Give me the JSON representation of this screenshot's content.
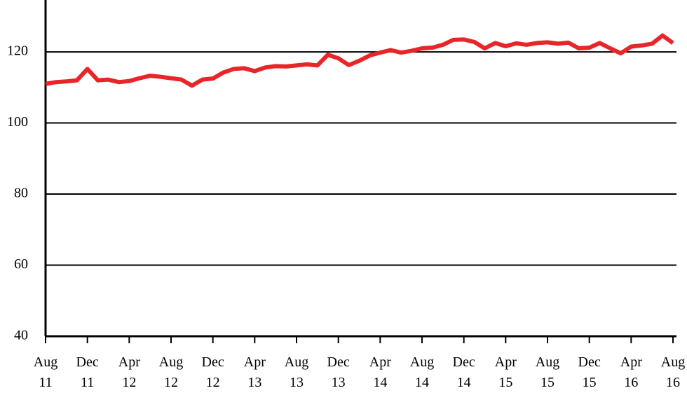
{
  "chart_data": {
    "type": "line",
    "categories": [
      "Aug 11",
      null,
      null,
      null,
      "Dec 11",
      null,
      null,
      null,
      "Apr 12",
      null,
      null,
      null,
      "Aug 12",
      null,
      null,
      null,
      "Dec 12",
      null,
      null,
      null,
      "Apr 13",
      null,
      null,
      null,
      "Aug 13",
      null,
      null,
      null,
      "Dec 13",
      null,
      null,
      null,
      "Apr 14",
      null,
      null,
      null,
      "Aug 14",
      null,
      null,
      null,
      "Dec 14",
      null,
      null,
      null,
      "Apr 15",
      null,
      null,
      null,
      "Aug 15",
      null,
      null,
      null,
      "Dec 15",
      null,
      null,
      null,
      "Apr 16",
      null,
      null,
      null,
      "Aug 16"
    ],
    "series": [
      {
        "color": "#e8262a",
        "values": [
          111,
          111.5,
          111.7,
          112,
          115.2,
          112,
          112.2,
          111.5,
          111.8,
          112.6,
          113.3,
          113,
          112.6,
          112.2,
          110.5,
          112.2,
          112.5,
          114.2,
          115.2,
          115.4,
          114.6,
          115.6,
          116,
          115.9,
          116.2,
          116.5,
          116.2,
          119.2,
          118.2,
          116.3,
          117.5,
          119,
          119.8,
          120.5,
          119.8,
          120.3,
          121,
          121.2,
          122,
          123.4,
          123.5,
          122.8,
          121,
          122.5,
          121.6,
          122.4,
          122,
          122.5,
          122.7,
          122.3,
          122.6,
          121,
          121.2,
          122.5,
          121,
          119.6,
          121.5,
          121.8,
          122.3,
          124.6,
          122.5
        ]
      }
    ],
    "ylim": [
      40,
      134.6
    ],
    "yticks": [
      40,
      60,
      80,
      100,
      120
    ],
    "grid": true
  }
}
